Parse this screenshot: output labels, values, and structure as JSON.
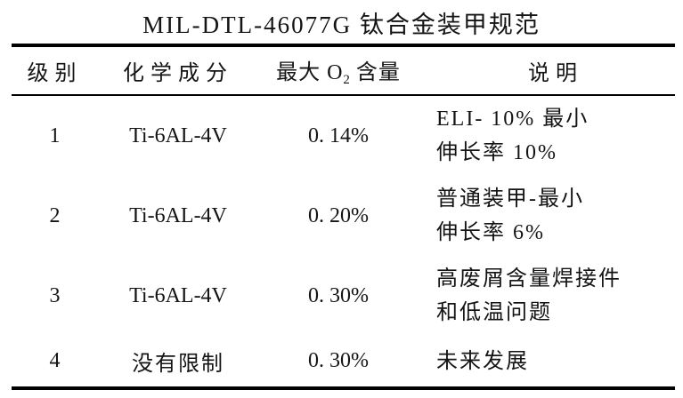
{
  "title": "MIL-DTL-46077G 钛合金装甲规范",
  "table": {
    "headers": {
      "grade": "级别",
      "composition": "化学成分",
      "oxygen_pre": "最大 O",
      "oxygen_sub": "2",
      "oxygen_post": " 含量",
      "description": "说明"
    },
    "rows": [
      {
        "grade": "1",
        "composition": "Ti-6AL-4V",
        "max_o2": "0. 14%",
        "desc_line1": "ELI- 10% 最小",
        "desc_line2": "伸长率 10%"
      },
      {
        "grade": "2",
        "composition": "Ti-6AL-4V",
        "max_o2": "0. 20%",
        "desc_line1": "普通装甲-最小",
        "desc_line2": "伸长率 6%"
      },
      {
        "grade": "3",
        "composition": "Ti-6AL-4V",
        "max_o2": "0. 30%",
        "desc_line1": "高废屑含量焊接件",
        "desc_line2": "和低温问题"
      },
      {
        "grade": "4",
        "composition": "没有限制",
        "max_o2": "0. 30%",
        "desc_line1": "未来发展"
      }
    ]
  }
}
